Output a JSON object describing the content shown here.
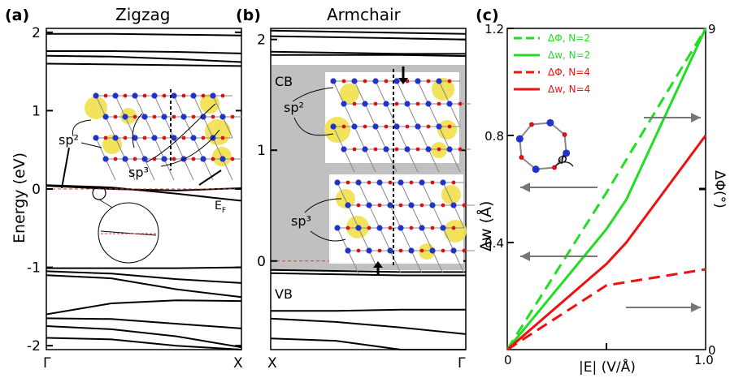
{
  "chart_data": [
    {
      "panel": "(a)",
      "type": "line",
      "title": "Zigzag",
      "ylabel": "Energy (eV)",
      "ylim": [
        -2.05,
        2.05
      ],
      "yticks": [
        "2",
        "1",
        "0",
        "-1",
        "-2"
      ],
      "xticks": [
        "Γ",
        "X"
      ],
      "annotations": [
        "sp²",
        "sp³",
        "E",
        "F"
      ],
      "bands": [
        [
          1.98,
          1.98,
          1.97,
          1.96
        ],
        [
          1.76,
          1.76,
          1.75,
          1.73
        ],
        [
          1.7,
          1.69,
          1.66,
          1.62
        ],
        [
          1.6,
          1.59,
          1.58,
          1.57
        ],
        [
          0.05,
          0.02,
          -0.06,
          -0.15
        ],
        [
          0.04,
          0.0,
          -0.02,
          0.01
        ],
        [
          -1.01,
          -1.01,
          -1.01,
          -1.0
        ],
        [
          -1.05,
          -1.08,
          -1.15,
          -1.2
        ],
        [
          -1.1,
          -1.14,
          -1.28,
          -1.38
        ],
        [
          -1.6,
          -1.46,
          -1.42,
          -1.43
        ],
        [
          -1.65,
          -1.66,
          -1.72,
          -1.78
        ],
        [
          -1.75,
          -1.79,
          -1.88,
          -2.02
        ],
        [
          -1.9,
          -1.92,
          -2.0,
          -2.05
        ]
      ]
    },
    {
      "panel": "(b)",
      "type": "line",
      "title": "Armchair",
      "ylim": [
        -0.8,
        2.1
      ],
      "yticks": [
        "2",
        "1",
        "0"
      ],
      "xticks": [
        "X",
        "Γ"
      ],
      "annotations": [
        "CB",
        "VB",
        "sp²",
        "sp³"
      ],
      "bands": [
        [
          2.08,
          2.07,
          2.06,
          2.05
        ],
        [
          2.03,
          2.02,
          2.01,
          2.0
        ],
        [
          1.89,
          1.88,
          1.87,
          1.87
        ],
        [
          1.86,
          1.86,
          1.86,
          1.85
        ],
        [
          -0.08,
          -0.09,
          -0.1,
          -0.1
        ],
        [
          -0.11,
          -0.12,
          -0.13,
          -0.13
        ],
        [
          -0.45,
          -0.45,
          -0.44,
          -0.44
        ],
        [
          -0.52,
          -0.55,
          -0.6,
          -0.66
        ],
        [
          -0.7,
          -0.72,
          -0.8,
          -0.8
        ]
      ]
    },
    {
      "panel": "(c)",
      "type": "line",
      "xlabel": "|E| (V/Å)",
      "ylabel": "Δw (Å)",
      "ylabel_right": "ΔΦ(°)",
      "xlim": [
        0,
        1.0
      ],
      "ylim": [
        0,
        1.2
      ],
      "ylim_right": [
        0,
        9
      ],
      "xticks": [
        "0",
        "1.0"
      ],
      "yticks": [
        "0.4",
        "0.8",
        "1.2"
      ],
      "yticks_right": [
        "0",
        "9"
      ],
      "legend_position": "top-left",
      "series": [
        {
          "name": "ΔΦ, N=2",
          "color": "#22dd22",
          "dash": true,
          "axis": "right",
          "x": [
            0,
            0.5,
            1.0
          ],
          "y": [
            0,
            4.4,
            9.0
          ]
        },
        {
          "name": "Δw, N=2",
          "color": "#22dd22",
          "dash": false,
          "axis": "left",
          "x": [
            0,
            0.5,
            0.6,
            1.0
          ],
          "y": [
            0,
            0.45,
            0.56,
            1.2
          ]
        },
        {
          "name": "ΔΦ, N=4",
          "color": "#ee1111",
          "dash": true,
          "axis": "right",
          "x": [
            0,
            0.5,
            1.0
          ],
          "y": [
            0,
            1.8,
            2.25
          ]
        },
        {
          "name": "Δw, N=4",
          "color": "#ee1111",
          "dash": false,
          "axis": "left",
          "x": [
            0,
            0.5,
            0.6,
            1.0
          ],
          "y": [
            0,
            0.32,
            0.4,
            0.8
          ]
        }
      ],
      "annotations": [
        "Φ"
      ]
    }
  ],
  "panels": {
    "a": {
      "letter": "(a)",
      "title": "Zigzag"
    },
    "b": {
      "letter": "(b)",
      "title": "Armchair"
    },
    "c": {
      "letter": "(c)"
    }
  },
  "colors": {
    "gap_shade": "#c0c0c0",
    "fermi": "#ee3333",
    "arrow": "#777777",
    "atom_blue": "#2233cc",
    "atom_red": "#dd1111",
    "density": "#f2e04a"
  }
}
